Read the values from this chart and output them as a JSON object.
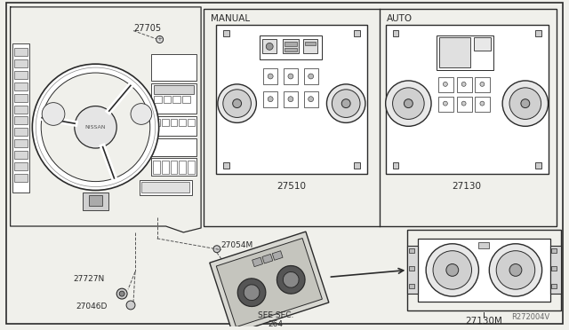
{
  "bg_color": "#f0f0eb",
  "line_color": "#2a2a2a",
  "watermark": "R272004V",
  "manual_label": "MANUAL",
  "auto_label": "AUTO",
  "part_27705": "27705",
  "part_27510": "27510",
  "part_27130": "27130",
  "part_27054M": "27054M",
  "part_27727N": "27727N",
  "part_27046D": "27046D",
  "part_27130M": "27130M",
  "see_sec": "SEE SEC.\n264"
}
